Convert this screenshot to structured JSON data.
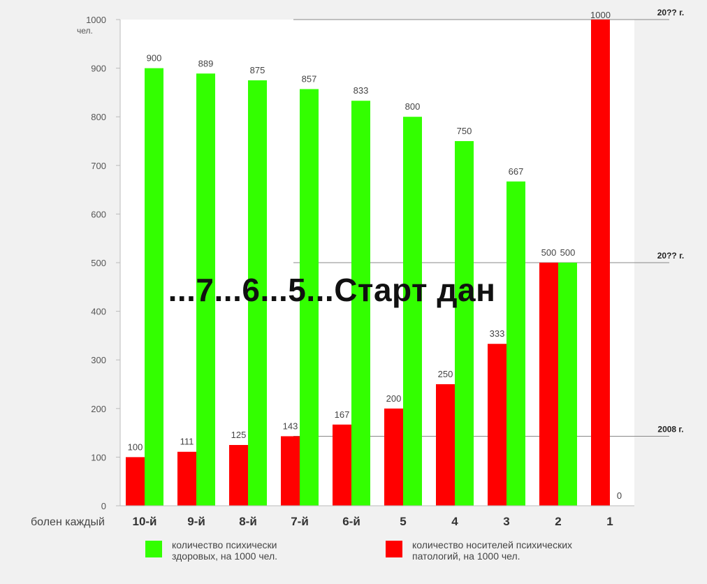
{
  "chart_data": {
    "type": "bar",
    "title": "...7...6...5...Старт дан",
    "y_unit": "чел.",
    "xlabel": "болен каждый",
    "ylim": [
      0,
      1000
    ],
    "yticks": [
      0,
      100,
      200,
      300,
      400,
      500,
      600,
      700,
      800,
      900,
      1000
    ],
    "ytick_labels": [
      "0",
      "100",
      "200",
      "300",
      "400",
      "500",
      "600",
      "700",
      "800",
      "900",
      "1000"
    ],
    "categories": [
      "10-й",
      "9-й",
      "8-й",
      "7-й",
      "6-й",
      "5",
      "4",
      "3",
      "2",
      "1"
    ],
    "series": [
      {
        "name": "количество носителей психических патологий, на 1000 чел.",
        "color": "#ff0000",
        "values": [
          100,
          111,
          125,
          143,
          167,
          200,
          250,
          333,
          500,
          1000
        ]
      },
      {
        "name": "количество психически здоровых, на 1000 чел.",
        "color": "#33ff00",
        "values": [
          900,
          889,
          875,
          857,
          833,
          800,
          750,
          667,
          500,
          0
        ]
      }
    ],
    "reference_lines": [
      {
        "value": 1000,
        "label": "20?? г."
      },
      {
        "value": 500,
        "label": "20?? г."
      },
      {
        "value": 143,
        "label": "2008 г."
      }
    ],
    "grid": false,
    "legend_position": "bottom"
  },
  "legend": {
    "healthy_label": "количество психически\nздоровых, на 1000 чел.",
    "pathology_label": "количество носителей психических\nпатологий, на 1000 чел."
  },
  "colors": {
    "healthy": "#33ff00",
    "pathology": "#ff0000",
    "plot_background": "#ffffff",
    "page_background": "#f1f1f1"
  }
}
